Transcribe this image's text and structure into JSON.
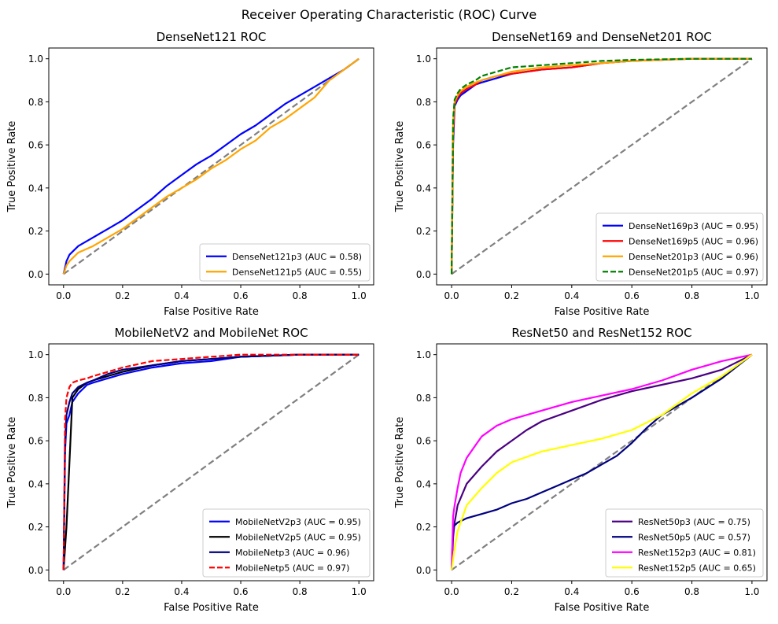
{
  "figure": {
    "suptitle": "Receiver Operating Characteristic (ROC) Curve"
  },
  "chart_data": [
    {
      "type": "line",
      "title": "DenseNet121 ROC",
      "xlabel": "False Positive Rate",
      "ylabel": "True Positive Rate",
      "xlim": [
        -0.05,
        1.05
      ],
      "ylim": [
        -0.05,
        1.05
      ],
      "xticks": [
        "0.0",
        "0.2",
        "0.4",
        "0.6",
        "0.8",
        "1.0"
      ],
      "yticks": [
        "0.0",
        "0.2",
        "0.4",
        "0.6",
        "0.8",
        "1.0"
      ],
      "grid": false,
      "legend_position": "lower right",
      "diagonal": {
        "color": "#808080",
        "dashed": true
      },
      "series": [
        {
          "name": "DenseNet121p3 (AUC = 0.58)",
          "color": "#0000ff",
          "dashed": false,
          "x": [
            0,
            0.005,
            0.01,
            0.02,
            0.05,
            0.1,
            0.15,
            0.2,
            0.25,
            0.3,
            0.35,
            0.4,
            0.45,
            0.5,
            0.55,
            0.6,
            0.65,
            0.7,
            0.75,
            0.8,
            0.85,
            0.9,
            0.95,
            1.0
          ],
          "y": [
            0,
            0.03,
            0.06,
            0.09,
            0.13,
            0.17,
            0.21,
            0.25,
            0.3,
            0.35,
            0.41,
            0.46,
            0.51,
            0.55,
            0.6,
            0.65,
            0.69,
            0.74,
            0.79,
            0.83,
            0.87,
            0.91,
            0.95,
            1.0
          ]
        },
        {
          "name": "DenseNet121p5 (AUC = 0.55)",
          "color": "#ffa500",
          "dashed": false,
          "x": [
            0,
            0.005,
            0.01,
            0.02,
            0.05,
            0.1,
            0.15,
            0.2,
            0.25,
            0.3,
            0.35,
            0.4,
            0.45,
            0.5,
            0.55,
            0.6,
            0.65,
            0.7,
            0.75,
            0.8,
            0.85,
            0.9,
            0.95,
            1.0
          ],
          "y": [
            0,
            0.02,
            0.04,
            0.06,
            0.1,
            0.13,
            0.17,
            0.21,
            0.26,
            0.31,
            0.36,
            0.4,
            0.44,
            0.49,
            0.53,
            0.58,
            0.62,
            0.68,
            0.72,
            0.77,
            0.82,
            0.9,
            0.95,
            1.0
          ]
        }
      ]
    },
    {
      "type": "line",
      "title": "DenseNet169 and DenseNet201 ROC",
      "xlabel": "False Positive Rate",
      "ylabel": "True Positive Rate",
      "xlim": [
        -0.05,
        1.05
      ],
      "ylim": [
        -0.05,
        1.05
      ],
      "xticks": [
        "0.0",
        "0.2",
        "0.4",
        "0.6",
        "0.8",
        "1.0"
      ],
      "yticks": [
        "0.0",
        "0.2",
        "0.4",
        "0.6",
        "0.8",
        "1.0"
      ],
      "grid": false,
      "legend_position": "lower right",
      "diagonal": {
        "color": "#808080",
        "dashed": true
      },
      "series": [
        {
          "name": "DenseNet169p3 (AUC = 0.95)",
          "color": "#0000ff",
          "dashed": false,
          "x": [
            0,
            0.005,
            0.01,
            0.02,
            0.03,
            0.05,
            0.08,
            0.1,
            0.15,
            0.2,
            0.3,
            0.4,
            0.5,
            0.6,
            0.8,
            1.0
          ],
          "y": [
            0,
            0.6,
            0.78,
            0.81,
            0.83,
            0.85,
            0.88,
            0.89,
            0.91,
            0.93,
            0.95,
            0.96,
            0.98,
            0.99,
            1.0,
            1.0
          ]
        },
        {
          "name": "DenseNet169p5 (AUC = 0.96)",
          "color": "#ff0000",
          "dashed": false,
          "x": [
            0,
            0.005,
            0.01,
            0.02,
            0.03,
            0.05,
            0.08,
            0.1,
            0.15,
            0.2,
            0.3,
            0.4,
            0.45,
            0.5,
            0.6,
            0.8,
            1.0
          ],
          "y": [
            0,
            0.65,
            0.79,
            0.82,
            0.84,
            0.86,
            0.88,
            0.9,
            0.92,
            0.93,
            0.95,
            0.96,
            0.97,
            0.98,
            0.99,
            1.0,
            1.0
          ]
        },
        {
          "name": "DenseNet201p3 (AUC = 0.96)",
          "color": "#ffa500",
          "dashed": false,
          "x": [
            0,
            0.005,
            0.01,
            0.02,
            0.03,
            0.05,
            0.08,
            0.1,
            0.15,
            0.2,
            0.3,
            0.4,
            0.5,
            0.6,
            0.8,
            1.0
          ],
          "y": [
            0,
            0.7,
            0.8,
            0.83,
            0.85,
            0.87,
            0.89,
            0.9,
            0.92,
            0.94,
            0.96,
            0.97,
            0.98,
            0.99,
            1.0,
            1.0
          ]
        },
        {
          "name": "DenseNet201p5 (AUC = 0.97)",
          "color": "#008000",
          "dashed": true,
          "x": [
            0,
            0.005,
            0.01,
            0.02,
            0.03,
            0.05,
            0.08,
            0.1,
            0.15,
            0.2,
            0.3,
            0.4,
            0.5,
            0.6,
            0.8,
            1.0
          ],
          "y": [
            0,
            0.72,
            0.81,
            0.84,
            0.86,
            0.88,
            0.9,
            0.92,
            0.94,
            0.96,
            0.97,
            0.98,
            0.99,
            0.995,
            1.0,
            1.0
          ]
        }
      ]
    },
    {
      "type": "line",
      "title": "MobileNetV2 and MobileNet ROC",
      "xlabel": "False Positive Rate",
      "ylabel": "True Positive Rate",
      "xlim": [
        -0.05,
        1.05
      ],
      "ylim": [
        -0.05,
        1.05
      ],
      "xticks": [
        "0.0",
        "0.2",
        "0.4",
        "0.6",
        "0.8",
        "1.0"
      ],
      "yticks": [
        "0.0",
        "0.2",
        "0.4",
        "0.6",
        "0.8",
        "1.0"
      ],
      "grid": false,
      "legend_position": "lower right",
      "diagonal": {
        "color": "#808080",
        "dashed": true
      },
      "series": [
        {
          "name": "MobileNetV2p3 (AUC = 0.95)",
          "color": "#0000ff",
          "dashed": false,
          "x": [
            0,
            0.005,
            0.01,
            0.02,
            0.03,
            0.05,
            0.08,
            0.1,
            0.15,
            0.2,
            0.3,
            0.4,
            0.5,
            0.6,
            0.8,
            1.0
          ],
          "y": [
            0,
            0.55,
            0.68,
            0.72,
            0.78,
            0.82,
            0.86,
            0.87,
            0.89,
            0.91,
            0.94,
            0.96,
            0.97,
            0.99,
            1.0,
            1.0
          ]
        },
        {
          "name": "MobileNetV2p5 (AUC = 0.95)",
          "color": "#000000",
          "dashed": false,
          "x": [
            0,
            0.01,
            0.02,
            0.03,
            0.05,
            0.08,
            0.1,
            0.15,
            0.2,
            0.3,
            0.4,
            0.5,
            0.6,
            0.8,
            1.0
          ],
          "y": [
            0,
            0.2,
            0.5,
            0.8,
            0.84,
            0.87,
            0.88,
            0.9,
            0.92,
            0.95,
            0.97,
            0.98,
            0.99,
            1.0,
            1.0
          ]
        },
        {
          "name": "MobileNetp3 (AUC = 0.96)",
          "color": "#000080",
          "dashed": false,
          "x": [
            0,
            0.005,
            0.01,
            0.02,
            0.03,
            0.05,
            0.08,
            0.1,
            0.15,
            0.2,
            0.3,
            0.4,
            0.5,
            0.6,
            0.8,
            1.0
          ],
          "y": [
            0,
            0.6,
            0.72,
            0.78,
            0.82,
            0.85,
            0.87,
            0.88,
            0.91,
            0.93,
            0.95,
            0.97,
            0.98,
            0.99,
            1.0,
            1.0
          ]
        },
        {
          "name": "MobileNetp5 (AUC = 0.97)",
          "color": "#ff0000",
          "dashed": true,
          "x": [
            0,
            0.005,
            0.01,
            0.02,
            0.03,
            0.05,
            0.08,
            0.1,
            0.15,
            0.2,
            0.3,
            0.4,
            0.5,
            0.6,
            0.8,
            1.0
          ],
          "y": [
            0,
            0.7,
            0.8,
            0.85,
            0.87,
            0.88,
            0.89,
            0.9,
            0.92,
            0.94,
            0.97,
            0.98,
            0.99,
            1.0,
            1.0,
            1.0
          ]
        }
      ]
    },
    {
      "type": "line",
      "title": "ResNet50 and ResNet152 ROC",
      "xlabel": "False Positive Rate",
      "ylabel": "True Positive Rate",
      "xlim": [
        -0.05,
        1.05
      ],
      "ylim": [
        -0.05,
        1.05
      ],
      "xticks": [
        "0.0",
        "0.2",
        "0.4",
        "0.6",
        "0.8",
        "1.0"
      ],
      "yticks": [
        "0.0",
        "0.2",
        "0.4",
        "0.6",
        "0.8",
        "1.0"
      ],
      "grid": false,
      "legend_position": "lower right",
      "diagonal": {
        "color": "#808080",
        "dashed": true
      },
      "series": [
        {
          "name": "ResNet50p3 (AUC = 0.75)",
          "color": "#4b0082",
          "dashed": false,
          "x": [
            0,
            0.005,
            0.01,
            0.02,
            0.05,
            0.1,
            0.15,
            0.2,
            0.25,
            0.3,
            0.4,
            0.5,
            0.6,
            0.7,
            0.8,
            0.9,
            1.0
          ],
          "y": [
            0,
            0.15,
            0.22,
            0.3,
            0.4,
            0.48,
            0.55,
            0.6,
            0.65,
            0.69,
            0.74,
            0.79,
            0.83,
            0.86,
            0.89,
            0.93,
            1.0
          ]
        },
        {
          "name": "ResNet50p5 (AUC = 0.57)",
          "color": "#000080",
          "dashed": false,
          "x": [
            0,
            0.005,
            0.02,
            0.05,
            0.1,
            0.15,
            0.2,
            0.25,
            0.3,
            0.35,
            0.4,
            0.45,
            0.5,
            0.55,
            0.6,
            0.65,
            0.7,
            0.8,
            0.9,
            1.0
          ],
          "y": [
            0,
            0.2,
            0.22,
            0.24,
            0.26,
            0.28,
            0.31,
            0.33,
            0.36,
            0.39,
            0.42,
            0.45,
            0.49,
            0.53,
            0.59,
            0.66,
            0.72,
            0.8,
            0.89,
            1.0
          ]
        },
        {
          "name": "ResNet152p3 (AUC = 0.81)",
          "color": "#ff00ff",
          "dashed": false,
          "x": [
            0,
            0.005,
            0.01,
            0.02,
            0.03,
            0.05,
            0.08,
            0.1,
            0.15,
            0.2,
            0.3,
            0.4,
            0.5,
            0.6,
            0.7,
            0.8,
            0.9,
            1.0
          ],
          "y": [
            0,
            0.25,
            0.3,
            0.38,
            0.45,
            0.52,
            0.58,
            0.62,
            0.67,
            0.7,
            0.74,
            0.78,
            0.81,
            0.84,
            0.88,
            0.93,
            0.97,
            1.0
          ]
        },
        {
          "name": "ResNet152p5 (AUC = 0.65)",
          "color": "#ffff00",
          "dashed": false,
          "x": [
            0,
            0.005,
            0.01,
            0.02,
            0.05,
            0.1,
            0.15,
            0.2,
            0.3,
            0.4,
            0.5,
            0.6,
            0.7,
            0.8,
            0.9,
            1.0
          ],
          "y": [
            0,
            0.05,
            0.1,
            0.18,
            0.3,
            0.38,
            0.45,
            0.5,
            0.55,
            0.58,
            0.61,
            0.65,
            0.72,
            0.82,
            0.9,
            1.0
          ]
        }
      ]
    }
  ]
}
